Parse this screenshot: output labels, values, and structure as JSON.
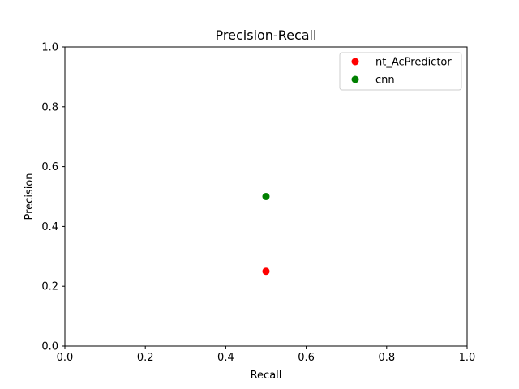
{
  "chart_data": {
    "type": "scatter",
    "title": "Precision-Recall",
    "xlabel": "Recall",
    "ylabel": "Precision",
    "xlim": [
      0.0,
      1.0
    ],
    "ylim": [
      0.0,
      1.0
    ],
    "xticks": [
      "0.0",
      "0.2",
      "0.4",
      "0.6",
      "0.8",
      "1.0"
    ],
    "yticks": [
      "0.0",
      "0.2",
      "0.4",
      "0.6",
      "0.8",
      "1.0"
    ],
    "grid": false,
    "legend_position": "upper right",
    "series": [
      {
        "name": "nt_AcPredictor",
        "color": "#ff0000",
        "points": [
          {
            "x": 0.5,
            "y": 0.25
          }
        ]
      },
      {
        "name": "cnn",
        "color": "#008000",
        "points": [
          {
            "x": 0.5,
            "y": 0.5
          }
        ]
      }
    ]
  }
}
